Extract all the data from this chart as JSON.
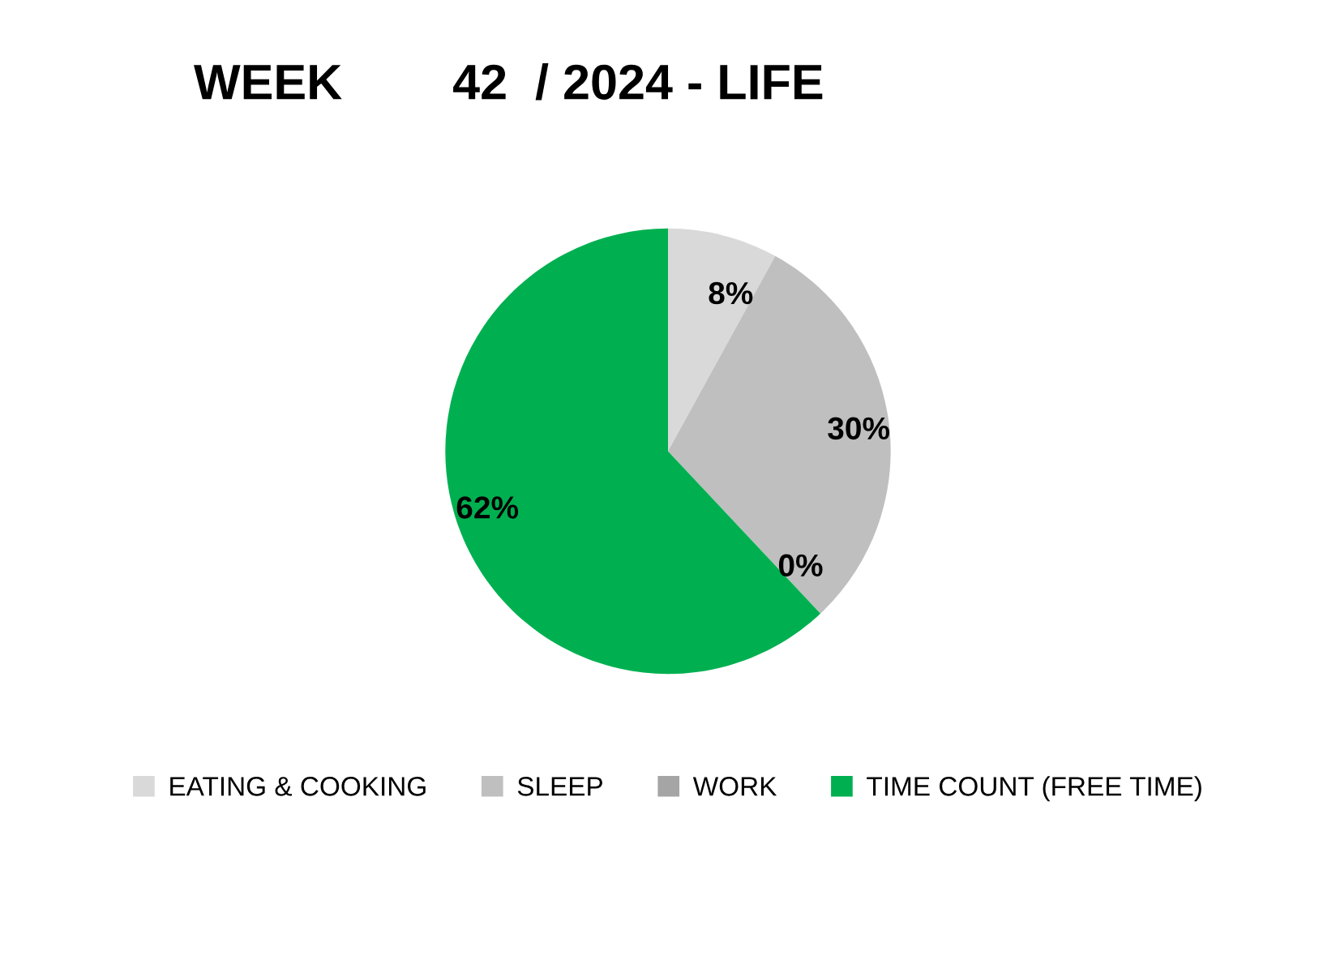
{
  "chart_data": {
    "type": "pie",
    "title": "WEEK        42  / 2024 - LIFE",
    "categories": [
      "EATING & COOKING",
      "SLEEP",
      "WORK",
      "TIME COUNT (FREE TIME)"
    ],
    "values": [
      8,
      30,
      0,
      62
    ],
    "colors": [
      "#d9d9d9",
      "#bfbfbf",
      "#a5a5a5",
      "#00b050"
    ],
    "value_labels": [
      "8%",
      "30%",
      "0%",
      "62%"
    ],
    "legend": "bottom"
  }
}
